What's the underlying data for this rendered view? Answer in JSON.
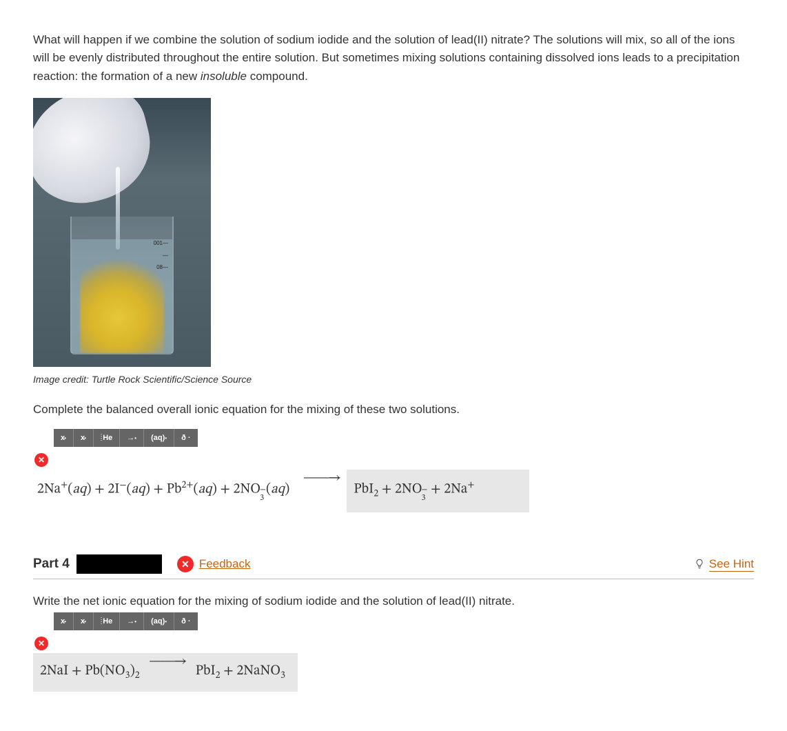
{
  "intro": {
    "text_before_em": "What will happen if we combine the solution of sodium iodide and the solution of lead(II) nitrate? The solutions will mix, so all of the ions will be evenly distributed throughout the entire solution. But sometimes mixing solutions containing dissolved ions leads to a precipitation reaction: the formation of a new ",
    "em": "insoluble",
    "text_after_em": " compound."
  },
  "image": {
    "credit": "Image credit: Turtle Rock Scientific/Science Source",
    "beaker_marks": [
      "001—",
      "—",
      "08—"
    ],
    "colors": {
      "background_top": "#3a4a55",
      "precipitate": "#e6c838",
      "glove": "#f5f5f8"
    }
  },
  "prompt1": "Complete the balanced overall ionic equation for the mixing of these two solutions.",
  "toolbar": {
    "items": [
      "x",
      "x_sub",
      "He_iso",
      "arrow",
      "aq",
      "delta"
    ],
    "bg": "#656565"
  },
  "status_icon": {
    "symbol": "✕",
    "color": "#ef2a2a"
  },
  "equation1": {
    "left_html": "2Na<sup>+</sup>(<i>aq</i>) + 2I<sup>−</sup>(<i>aq</i>) + Pb<sup>2+</sup>(<i>aq</i>) + 2NO<span class='supsub'><span>−</span><span>3</span></span>(<i>aq</i>)",
    "right_html": "PbI<sub>2</sub> + 2NO<span class='supsub'><span>−</span><span>3</span></span> + 2Na<sup>+</sup>",
    "right_bg": "#e7e7e7"
  },
  "part4": {
    "label": "Part 4",
    "feedback": "Feedback",
    "hint": "See Hint",
    "accent_color": "#c7640c"
  },
  "prompt2": "Write the net ionic equation for the mixing of sodium iodide and the solution of lead(II) nitrate.",
  "equation2": {
    "left_html": "2NaI + Pb(NO<sub>3</sub>)<sub>2</sub>",
    "right_html": "PbI<sub>2</sub> + 2NaNO<sub>3</sub>",
    "right_bg": "#e7e7e7"
  }
}
